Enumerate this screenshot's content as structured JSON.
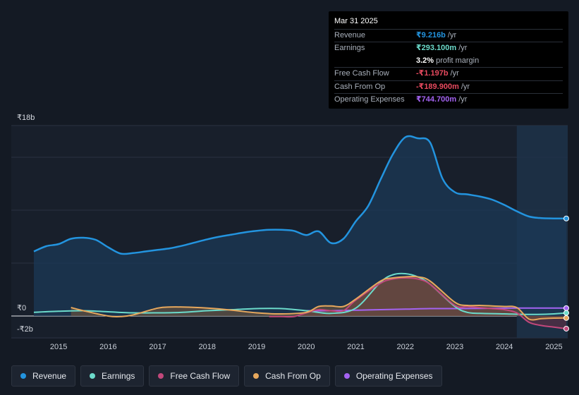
{
  "tooltip": {
    "date": "Mar 31 2025",
    "rows": [
      {
        "label": "Revenue",
        "value": "₹9.216b",
        "unit": "/yr",
        "color": "#2394df"
      },
      {
        "label": "Earnings",
        "value": "₹293.100m",
        "unit": "/yr",
        "color": "#6cdbcb"
      },
      {
        "label": "",
        "value": "3.2%",
        "unit": "profit margin",
        "color": "#ffffff"
      },
      {
        "label": "Free Cash Flow",
        "value": "-₹1.197b",
        "unit": "/yr",
        "color": "#e84a5f"
      },
      {
        "label": "Cash From Op",
        "value": "-₹189.900m",
        "unit": "/yr",
        "color": "#e84a5f"
      },
      {
        "label": "Operating Expenses",
        "value": "₹744.700m",
        "unit": "/yr",
        "color": "#a463f2"
      }
    ]
  },
  "legend": [
    {
      "label": "Revenue",
      "color": "#2394df"
    },
    {
      "label": "Earnings",
      "color": "#6cdbcb"
    },
    {
      "label": "Free Cash Flow",
      "color": "#c2487b"
    },
    {
      "label": "Cash From Op",
      "color": "#e7a85d"
    },
    {
      "label": "Operating Expenses",
      "color": "#a463f2"
    }
  ],
  "chart_data": {
    "type": "line",
    "y_tick_labels": [
      "₹18b",
      "₹0",
      "-₹2b"
    ],
    "x_tick_labels": [
      "2015",
      "2016",
      "2017",
      "2018",
      "2019",
      "2020",
      "2021",
      "2022",
      "2023",
      "2024",
      "2025"
    ],
    "ylim": [
      -2,
      18
    ],
    "xlim": [
      2014.5,
      2025.25
    ],
    "forecast_shade_from": 2024.25,
    "series": [
      {
        "name": "Revenue",
        "color": "#2394df",
        "area": true,
        "x": [
          2014.5,
          2014.75,
          2015.0,
          2015.25,
          2015.5,
          2015.75,
          2016.0,
          2016.25,
          2016.5,
          2016.75,
          2017.0,
          2017.25,
          2017.5,
          2017.75,
          2018.0,
          2018.25,
          2018.5,
          2018.75,
          2019.0,
          2019.25,
          2019.5,
          2019.75,
          2020.0,
          2020.25,
          2020.5,
          2020.75,
          2021.0,
          2021.25,
          2021.5,
          2021.75,
          2022.0,
          2022.25,
          2022.5,
          2022.75,
          2023.0,
          2023.25,
          2023.5,
          2023.75,
          2024.0,
          2024.25,
          2024.5,
          2024.75,
          2025.0,
          2025.25
        ],
        "y": [
          6.1,
          6.6,
          6.8,
          7.3,
          7.4,
          7.2,
          6.5,
          5.9,
          5.95,
          6.1,
          6.25,
          6.4,
          6.65,
          6.95,
          7.25,
          7.5,
          7.7,
          7.9,
          8.05,
          8.15,
          8.15,
          8.05,
          7.65,
          8.0,
          6.9,
          7.3,
          8.95,
          10.4,
          12.9,
          15.3,
          16.9,
          16.8,
          16.4,
          13.0,
          11.7,
          11.5,
          11.3,
          11.0,
          10.5,
          9.9,
          9.4,
          9.25,
          9.22,
          9.216
        ]
      },
      {
        "name": "Earnings",
        "color": "#6cdbcb",
        "x": [
          2014.5,
          2015.0,
          2015.5,
          2016.0,
          2016.5,
          2017.0,
          2017.5,
          2018.0,
          2018.5,
          2019.0,
          2019.5,
          2020.0,
          2020.5,
          2021.0,
          2021.5,
          2021.75,
          2022.0,
          2022.25,
          2022.5,
          2023.0,
          2023.25,
          2023.5,
          2024.0,
          2024.5,
          2025.0,
          2025.25
        ],
        "y": [
          0.35,
          0.45,
          0.5,
          0.4,
          0.3,
          0.3,
          0.35,
          0.5,
          0.6,
          0.7,
          0.7,
          0.5,
          0.25,
          0.75,
          3.2,
          3.9,
          4.0,
          3.7,
          3.0,
          0.9,
          0.35,
          0.25,
          0.2,
          0.15,
          0.2,
          0.293
        ]
      },
      {
        "name": "Free Cash Flow",
        "color": "#c2487b",
        "fill": "#6a2d45",
        "x": [
          2019.25,
          2019.5,
          2019.75,
          2020.0,
          2020.25,
          2020.5,
          2020.75,
          2021.0,
          2021.5,
          2021.75,
          2022.0,
          2022.25,
          2022.5,
          2023.0,
          2023.25,
          2023.5,
          2023.75,
          2024.0,
          2024.25,
          2024.5,
          2024.75,
          2025.0,
          2025.25
        ],
        "y": [
          -0.05,
          -0.05,
          -0.05,
          0.3,
          0.6,
          0.5,
          0.5,
          1.5,
          3.1,
          3.5,
          3.6,
          3.5,
          3.0,
          1.0,
          0.9,
          0.8,
          0.7,
          0.6,
          0.3,
          -0.6,
          -0.9,
          -1.05,
          -1.197
        ]
      },
      {
        "name": "Cash From Op",
        "color": "#e7a85d",
        "fill": "#7a5a3a",
        "x": [
          2015.25,
          2015.5,
          2016.0,
          2016.25,
          2016.5,
          2017.0,
          2017.25,
          2017.5,
          2018.0,
          2018.5,
          2019.0,
          2019.5,
          2020.0,
          2020.25,
          2020.5,
          2020.75,
          2021.0,
          2021.5,
          2021.75,
          2022.0,
          2022.25,
          2022.5,
          2023.0,
          2023.25,
          2023.5,
          2023.75,
          2024.0,
          2024.25,
          2024.5,
          2024.75,
          2025.0,
          2025.25
        ],
        "y": [
          0.8,
          0.5,
          0.0,
          -0.05,
          0.1,
          0.75,
          0.85,
          0.85,
          0.75,
          0.55,
          0.3,
          0.2,
          0.35,
          0.9,
          0.95,
          0.9,
          1.6,
          3.3,
          3.6,
          3.7,
          3.7,
          3.3,
          1.3,
          1.0,
          1.0,
          0.95,
          0.9,
          0.8,
          -0.3,
          -0.25,
          -0.2,
          -0.1899
        ]
      },
      {
        "name": "Operating Expenses",
        "color": "#a463f2",
        "x": [
          2020.0,
          2020.5,
          2021.0,
          2021.5,
          2022.0,
          2022.5,
          2023.0,
          2023.5,
          2024.0,
          2024.5,
          2025.0,
          2025.25
        ],
        "y": [
          0.5,
          0.5,
          0.55,
          0.6,
          0.65,
          0.7,
          0.7,
          0.72,
          0.74,
          0.745,
          0.745,
          0.7447
        ]
      }
    ]
  }
}
